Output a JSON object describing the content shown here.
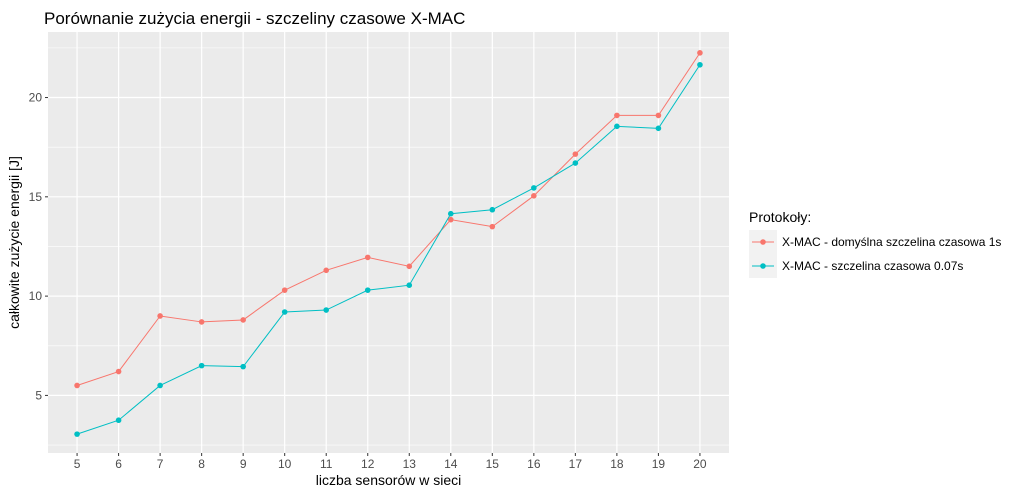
{
  "chart_data": {
    "type": "line",
    "title": "Porównanie zużycia energii - szczeliny czasowe X-MAC",
    "xlabel": "liczba sensorów w sieci",
    "ylabel": "całkowite zużycie energii [J]",
    "x": [
      5,
      6,
      7,
      8,
      9,
      10,
      11,
      12,
      13,
      14,
      15,
      16,
      17,
      18,
      19,
      20
    ],
    "xlim": [
      4.3,
      20.7
    ],
    "ylim": [
      2.1,
      23.3
    ],
    "yticks": [
      5,
      10,
      15,
      20
    ],
    "grid": true,
    "legend_title": "Protokoły:",
    "legend_position": "right",
    "series": [
      {
        "name": "X-MAC - domyślna szczelina czasowa 1s",
        "color": "#F8766D",
        "values": [
          5.5,
          6.2,
          9.0,
          8.7,
          8.8,
          10.3,
          11.3,
          11.95,
          11.5,
          13.85,
          13.5,
          15.05,
          17.15,
          19.1,
          19.1,
          22.25
        ]
      },
      {
        "name": "X-MAC - szczelina czasowa 0.07s",
        "color": "#00BFC4",
        "values": [
          3.05,
          3.75,
          5.5,
          6.5,
          6.45,
          9.2,
          9.3,
          10.3,
          10.55,
          14.15,
          14.35,
          15.45,
          16.7,
          18.55,
          18.45,
          21.65
        ]
      }
    ]
  }
}
